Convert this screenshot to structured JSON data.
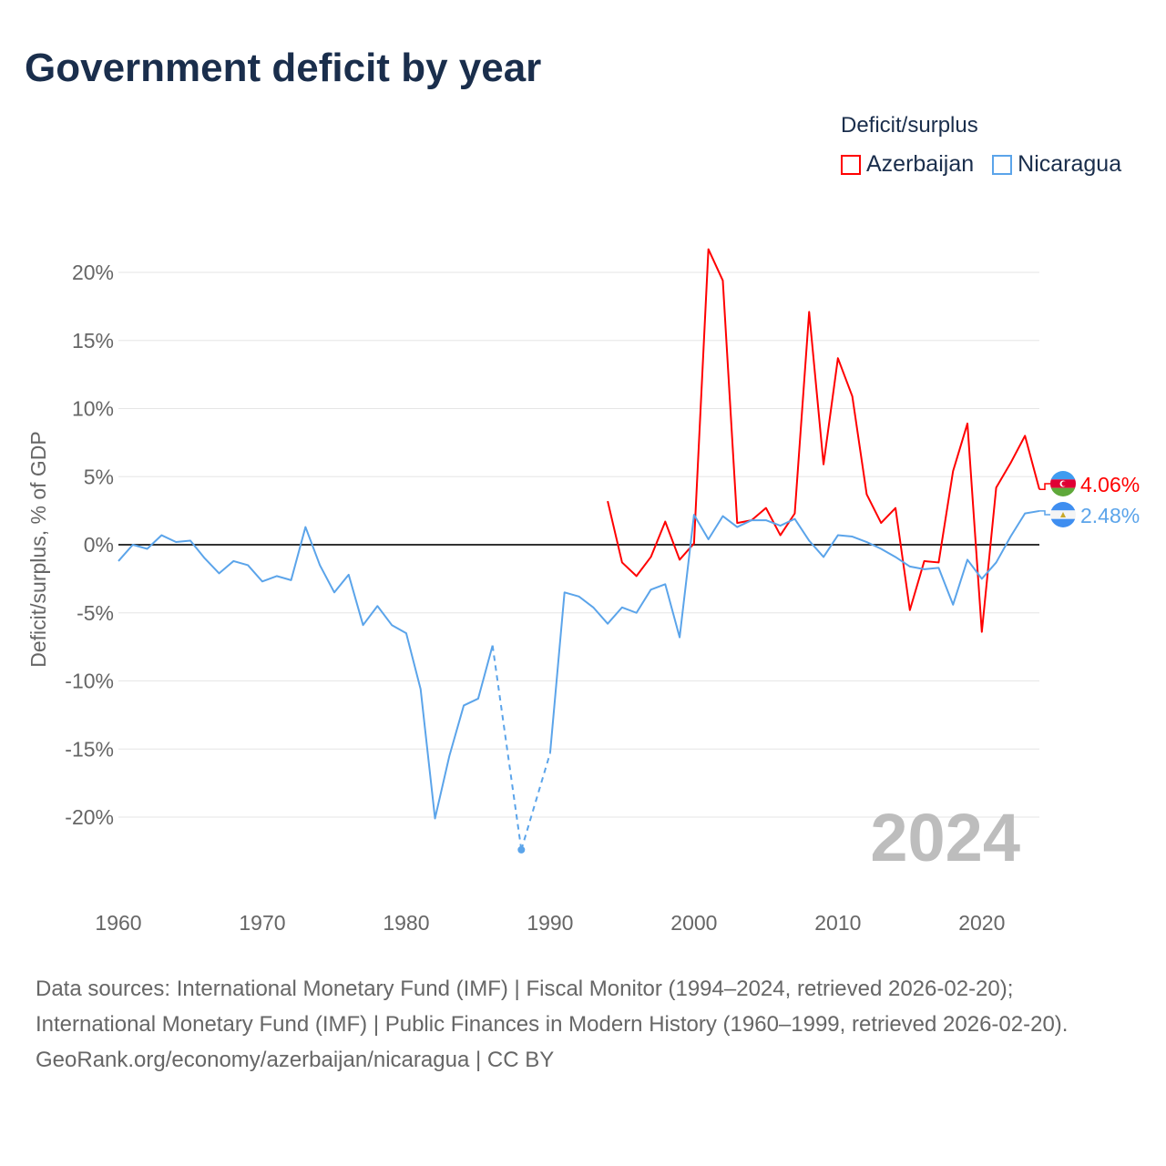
{
  "chart_data": {
    "type": "line",
    "title": "Government deficit by year",
    "xlabel": "",
    "ylabel": "Deficit/surplus, % of GDP",
    "xlim": [
      1960,
      2024
    ],
    "ylim": [
      -25,
      24
    ],
    "x_ticks": [
      1960,
      1970,
      1980,
      1990,
      2000,
      2010,
      2020
    ],
    "x_tick_labels": [
      "1960",
      "1970",
      "1980",
      "1990",
      "2000",
      "2010",
      "2020"
    ],
    "y_ticks": [
      20,
      15,
      10,
      5,
      0,
      -5,
      -10,
      -15,
      -20
    ],
    "y_tick_labels": [
      "20%",
      "15%",
      "10%",
      "5%",
      "0%",
      "-5%",
      "-10%",
      "-15%",
      "-20%"
    ],
    "grid": true,
    "legend_title": "Deficit/surplus",
    "legend_position": "top-right",
    "year_watermark": "2024",
    "series": [
      {
        "name": "Azerbaijan",
        "color": "#ff0000",
        "end_label": "4.06%",
        "start_year": 1994,
        "values": [
          3.2,
          -1.3,
          -2.3,
          -0.9,
          1.7,
          -1.1,
          0.1,
          21.7,
          19.4,
          1.6,
          1.8,
          2.7,
          0.7,
          2.3,
          17.1,
          5.9,
          13.7,
          10.9,
          3.7,
          1.6,
          2.7,
          -4.8,
          -1.2,
          -1.3,
          5.4,
          8.9,
          -6.4,
          4.2,
          6.0,
          8.0,
          4.06
        ]
      },
      {
        "name": "Nicaragua",
        "color": "#5ba4ea",
        "end_label": "2.48%",
        "start_year": 1960,
        "values": [
          -1.2,
          0,
          -0.3,
          0.7,
          0.2,
          0.3,
          -1.0,
          -2.1,
          -1.2,
          -1.5,
          -2.7,
          -2.3,
          -2.6,
          1.3,
          -1.5,
          -3.5,
          -2.2,
          -5.9,
          -4.5,
          -5.9,
          -6.5,
          -10.6,
          -20.1,
          -15.5,
          -11.8,
          -11.3,
          -7.4,
          null,
          -22.4,
          null,
          -15.3,
          -3.5,
          -3.8,
          -4.6,
          -5.8,
          -4.6,
          -5.0,
          -3.3,
          -2.9,
          -6.8,
          2.2,
          0.4,
          2.1,
          1.3,
          1.8,
          1.8,
          1.4,
          1.9,
          0.3,
          -0.9,
          0.7,
          0.6,
          0.2,
          -0.3,
          -0.9,
          -1.6,
          -1.8,
          -1.7,
          -4.4,
          -1.1,
          -2.5,
          -1.3,
          0.6,
          2.3,
          2.48
        ]
      }
    ]
  },
  "footer": {
    "sources": "Data sources: International Monetary Fund (IMF) | Fiscal Monitor (1994–2024, retrieved 2026-02-20); International Monetary Fund (IMF) | Public Finances in Modern History (1960–1999, retrieved 2026-02-20).",
    "credit": "GeoRank.org/economy/azerbaijan/nicaragua | CC BY"
  }
}
